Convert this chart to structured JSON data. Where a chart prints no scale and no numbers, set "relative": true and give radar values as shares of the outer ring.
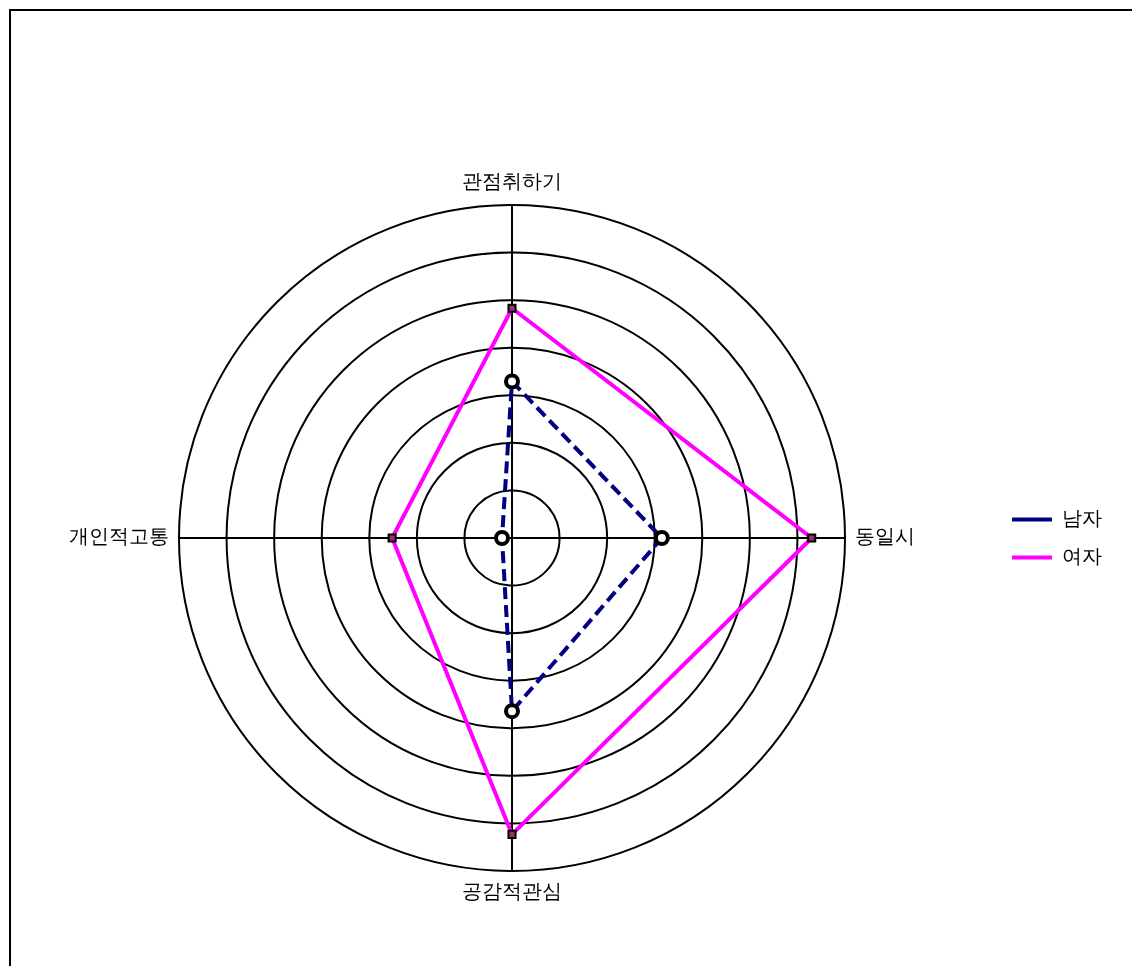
{
  "chart_data": {
    "type": "radar",
    "relative": true,
    "categories": [
      "관점취하기",
      "동일시",
      "공감적관심",
      "개인적고통"
    ],
    "series": [
      {
        "name": "남자",
        "color": "#000080",
        "values": [
          0.47,
          0.45,
          0.52,
          0.03
        ],
        "marker": "circle",
        "line_style": "dashed"
      },
      {
        "name": "여자",
        "color": "#ff00ff",
        "values": [
          0.69,
          0.9,
          0.89,
          0.36
        ],
        "marker": "square",
        "line_style": "solid"
      }
    ],
    "grid": true,
    "legend": "right"
  }
}
